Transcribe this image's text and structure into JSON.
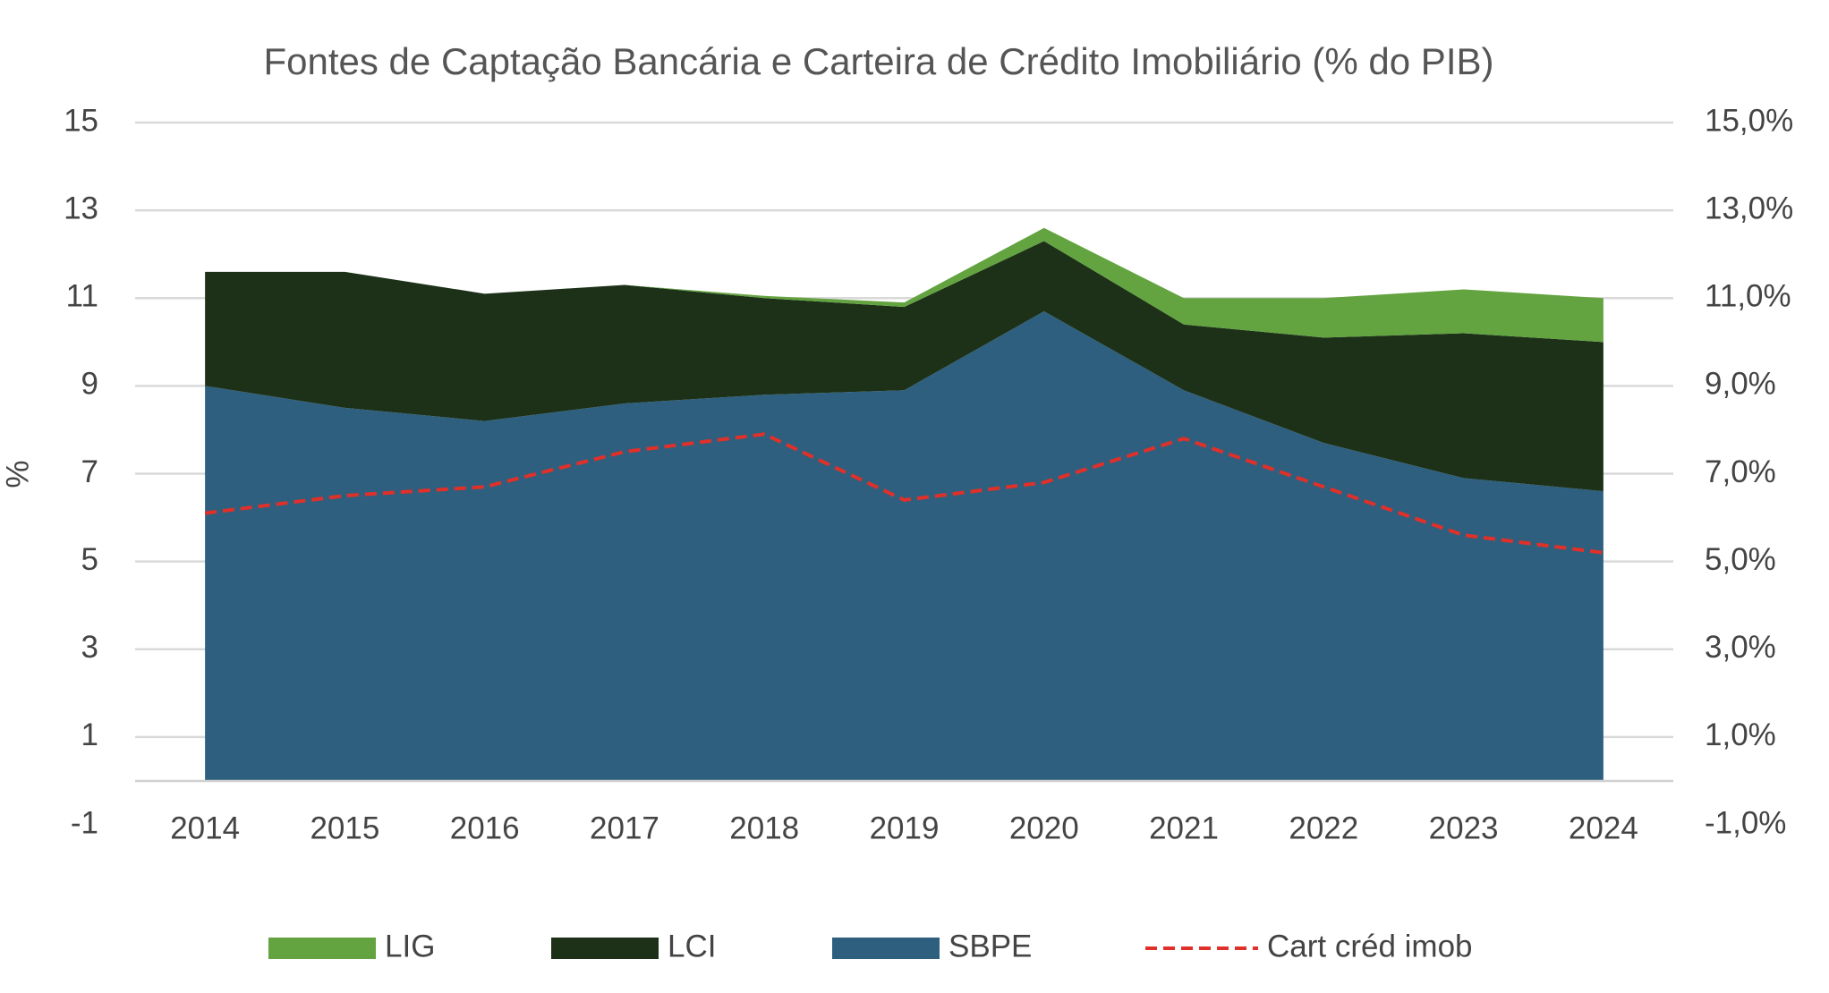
{
  "chart_data": {
    "type": "stacked-area",
    "title": "Fontes de Captação Bancária e Carteira de Crédito Imobiliário (% do PIB)",
    "ylabel": "%",
    "categories": [
      "2014",
      "2015",
      "2016",
      "2017",
      "2018",
      "2019",
      "2020",
      "2021",
      "2022",
      "2023",
      "2024"
    ],
    "series": [
      {
        "name": "LIG",
        "type": "area",
        "color": "#63a340",
        "values": [
          0,
          0,
          0,
          0,
          0.05,
          0.1,
          0.3,
          0.6,
          0.9,
          1.0,
          1.0
        ]
      },
      {
        "name": "LCI",
        "type": "area",
        "color": "#1c3118",
        "values": [
          2.6,
          3.1,
          2.9,
          2.7,
          2.2,
          1.9,
          1.6,
          1.5,
          2.4,
          3.3,
          3.4
        ]
      },
      {
        "name": "SBPE",
        "type": "area",
        "color": "#2e5f7e",
        "values": [
          9.0,
          8.5,
          8.2,
          8.6,
          8.8,
          8.9,
          10.7,
          8.9,
          7.7,
          6.9,
          6.6
        ]
      },
      {
        "name": "Cart créd imob",
        "type": "line",
        "axis": "y2",
        "color": "#e0302a",
        "dashed": true,
        "values": [
          6.1,
          6.5,
          6.7,
          7.5,
          7.9,
          6.4,
          6.8,
          7.8,
          6.7,
          5.6,
          5.2
        ]
      }
    ],
    "ylim": [
      -1,
      15
    ],
    "yticks": [
      -1,
      1,
      3,
      5,
      7,
      9,
      11,
      13,
      15
    ],
    "y2lim": [
      -1,
      15
    ],
    "y2ticks": [
      {
        "value": -1,
        "label": "-1,0%"
      },
      {
        "value": 1,
        "label": "1,0%"
      },
      {
        "value": 3,
        "label": "3,0%"
      },
      {
        "value": 5,
        "label": "5,0%"
      },
      {
        "value": 7,
        "label": "7,0%"
      },
      {
        "value": 9,
        "label": "9,0%"
      },
      {
        "value": 11,
        "label": "11,0%"
      },
      {
        "value": 13,
        "label": "13,0%"
      },
      {
        "value": 15,
        "label": "15,0%"
      }
    ],
    "grid": true,
    "legend": "bottom"
  }
}
